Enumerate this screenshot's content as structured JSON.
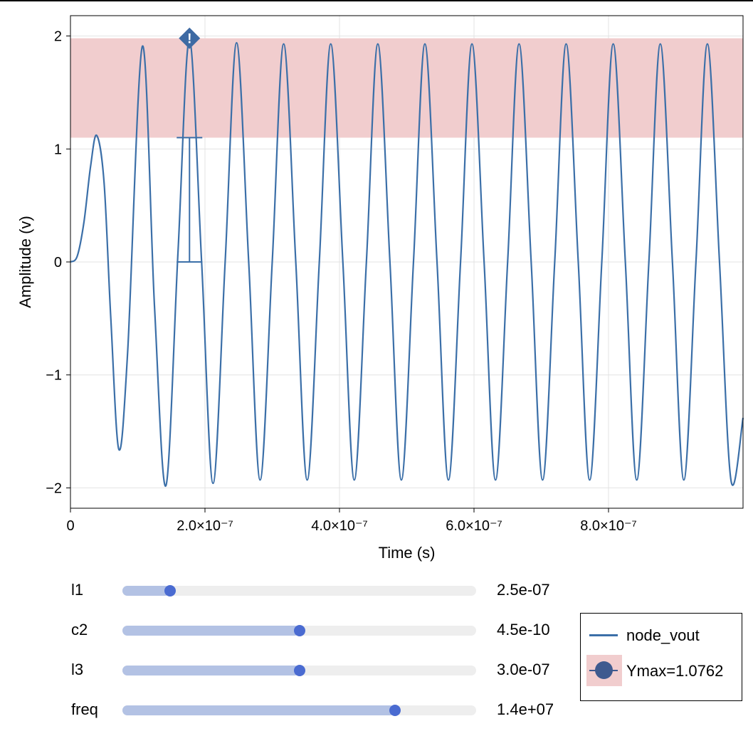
{
  "chart_data": {
    "type": "line",
    "title": "",
    "xlabel": "Time (s)",
    "ylabel": "Amplitude (v)",
    "xlim": [
      0,
      1e-06
    ],
    "ylim": [
      -2.18,
      2.18
    ],
    "x_ticks": [
      {
        "value": 0,
        "label": "0"
      },
      {
        "value": 2e-07,
        "label": "2.0×10⁻⁷"
      },
      {
        "value": 4e-07,
        "label": "4.0×10⁻⁷"
      },
      {
        "value": 6e-07,
        "label": "6.0×10⁻⁷"
      },
      {
        "value": 8e-07,
        "label": "8.0×10⁻⁷"
      }
    ],
    "y_ticks": [
      {
        "value": 2,
        "label": "2"
      },
      {
        "value": 1,
        "label": "1"
      },
      {
        "value": 0,
        "label": "0"
      },
      {
        "value": -1,
        "label": "−1"
      },
      {
        "value": -2,
        "label": "−2"
      }
    ],
    "grid": true,
    "series": [
      {
        "name": "node_vout",
        "color": "#3b6fa8",
        "x": [
          0,
          1e-08,
          2e-08,
          3e-08,
          3.9e-08,
          5e-08,
          6e-08,
          7.2e-08,
          8.5e-08,
          1.07e-07,
          1.25e-07,
          1.42e-07,
          1.6e-07,
          1.77e-07,
          1.95e-07,
          2.12e-07,
          2.3e-07,
          2.47e-07,
          2.65e-07,
          2.82e-07,
          3e-07,
          3.17e-07,
          3.35e-07,
          3.52e-07,
          3.7e-07,
          3.87e-07,
          4.05e-07,
          4.22e-07,
          4.4e-07,
          4.57e-07,
          4.75e-07,
          4.92e-07,
          5.1e-07,
          5.27e-07,
          5.45e-07,
          5.62e-07,
          5.8e-07,
          5.97e-07,
          6.15e-07,
          6.32e-07,
          6.5e-07,
          6.67e-07,
          6.85e-07,
          7.02e-07,
          7.2e-07,
          7.37e-07,
          7.55e-07,
          7.72e-07,
          7.9e-07,
          8.07e-07,
          8.25e-07,
          8.42e-07,
          8.6e-07,
          8.77e-07,
          8.95e-07,
          9.12e-07,
          9.3e-07,
          9.47e-07,
          9.65e-07,
          9.82e-07,
          1e-06
        ],
        "y": [
          0,
          0.05,
          0.35,
          0.85,
          1.12,
          0.7,
          -0.5,
          -1.66,
          -0.8,
          1.91,
          -0.4,
          -1.98,
          0.1,
          1.97,
          0.0,
          -1.96,
          0.0,
          1.94,
          0.0,
          -1.93,
          0.0,
          1.93,
          0.0,
          -1.93,
          0.0,
          1.93,
          0.0,
          -1.93,
          0.0,
          1.93,
          0.0,
          -1.93,
          0.0,
          1.93,
          0.0,
          -1.93,
          0.0,
          1.93,
          0.0,
          -1.93,
          0.0,
          1.93,
          0.0,
          -1.93,
          0.0,
          1.93,
          0.0,
          -1.93,
          0.0,
          1.93,
          0.0,
          -1.93,
          0.0,
          1.93,
          0.0,
          -1.93,
          0.0,
          1.93,
          0.0,
          -1.93,
          -1.38
        ]
      }
    ],
    "band": {
      "y_from": 1.1,
      "y_to": 1.98,
      "color": "#f1cdce"
    },
    "measure": {
      "x": 1.77e-07,
      "y_low": 0,
      "y_high": 1.1,
      "marker_y": 1.98,
      "marker_symbol": "!",
      "color": "#3b6fa8"
    },
    "legend": {
      "placement": "bottom-right",
      "entries": [
        {
          "label": "node_vout"
        },
        {
          "label": "Ymax=1.0762"
        }
      ]
    }
  },
  "sliders": [
    {
      "label": "l1",
      "value_text": "2.5e-07",
      "fraction": 0.135
    },
    {
      "label": "c2",
      "value_text": "4.5e-10",
      "fraction": 0.5
    },
    {
      "label": "l3",
      "value_text": "3.0e-07",
      "fraction": 0.5
    },
    {
      "label": "freq",
      "value_text": "1.4e+07",
      "fraction": 0.77
    }
  ]
}
